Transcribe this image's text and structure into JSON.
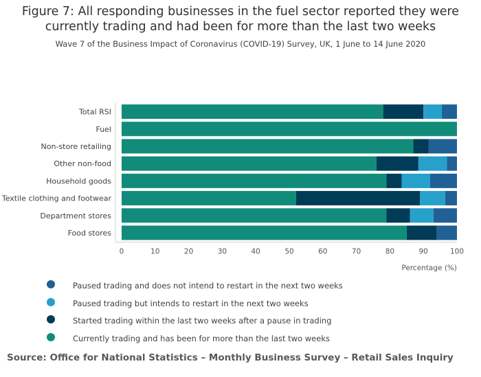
{
  "header": {
    "title_line1": "Figure 7: All responding businesses in the fuel sector reported they were",
    "title_line2": "currently trading and had been for more than the last two weeks",
    "subtitle": "Wave 7 of the Business Impact of Coronavirus (COVID-19) Survey, UK, 1 June to 14 June 2020"
  },
  "chart_data": {
    "type": "bar",
    "orientation": "horizontal",
    "stacked": true,
    "categories": [
      "Total RSI",
      "Fuel",
      "Non-store retailing",
      "Other non-food",
      "Household goods",
      "Textile clothing and footwear",
      "Department stores",
      "Food stores"
    ],
    "series": [
      {
        "name": "Currently trading and has been for more than the last two weeks",
        "color": "#118c7b",
        "values": [
          78,
          100,
          87,
          76,
          79,
          52,
          79,
          85
        ]
      },
      {
        "name": "Started trading within the last two weeks after a pause in trading",
        "color": "#003c57",
        "values": [
          12,
          0,
          4.5,
          12.5,
          4.5,
          37,
          7,
          9
        ]
      },
      {
        "name": "Paused trading but intends to restart in the next two weeks",
        "color": "#27a0cc",
        "values": [
          5.5,
          0,
          0,
          8.5,
          8.5,
          7.5,
          7,
          0
        ]
      },
      {
        "name": "Paused trading and does not intend to restart in the next two weeks",
        "color": "#206095",
        "values": [
          4.5,
          0,
          8.5,
          3,
          8,
          3.5,
          7,
          6
        ]
      }
    ],
    "xlim": [
      0,
      100
    ],
    "xticks": [
      "0",
      "10",
      "20",
      "30",
      "40",
      "50",
      "60",
      "70",
      "80",
      "90",
      "100"
    ],
    "xlabel": "Percentage (%)",
    "legend_position": "bottom-left"
  },
  "legend": {
    "items": [
      {
        "label": "Paused trading and does not intend to restart in the next two weeks",
        "color": "#206095"
      },
      {
        "label": "Paused trading but intends to restart in the next two weeks",
        "color": "#27a0cc"
      },
      {
        "label": "Started trading within the last two weeks after a pause in trading",
        "color": "#003c57"
      },
      {
        "label": "Currently trading and has been for more than the last two weeks",
        "color": "#118c7b"
      }
    ]
  },
  "footer": {
    "source": "Source: Office for National Statistics – Monthly Business Survey – Retail Sales Inquiry"
  }
}
